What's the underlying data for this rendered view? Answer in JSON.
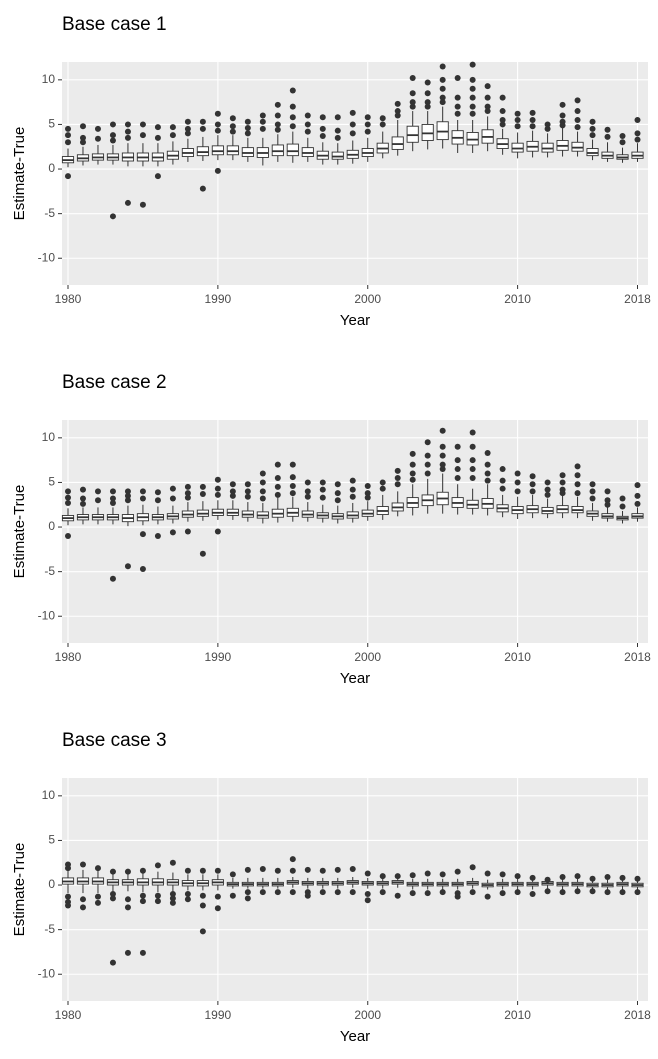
{
  "chart_data": [
    {
      "type": "box",
      "title": "Base case 1",
      "xlabel": "Year",
      "ylabel": "Estimate-True",
      "x": [
        1980,
        1981,
        1982,
        1983,
        1984,
        1985,
        1986,
        1987,
        1988,
        1989,
        1990,
        1991,
        1992,
        1993,
        1994,
        1995,
        1996,
        1997,
        1998,
        1999,
        2000,
        2001,
        2002,
        2003,
        2004,
        2005,
        2006,
        2007,
        2008,
        2009,
        2010,
        2011,
        2012,
        2013,
        2014,
        2015,
        2016,
        2017,
        2018
      ],
      "lower": [
        0.2,
        0.4,
        0.5,
        0.5,
        0.3,
        0.3,
        0.3,
        0.5,
        0.8,
        0.9,
        1.0,
        1.0,
        0.8,
        0.4,
        0.8,
        0.7,
        0.8,
        0.5,
        0.5,
        0.6,
        0.8,
        1.2,
        1.5,
        2.0,
        2.2,
        2.3,
        1.8,
        1.8,
        2.0,
        1.6,
        1.2,
        1.3,
        1.3,
        1.4,
        1.4,
        1.0,
        0.8,
        0.7,
        0.8
      ],
      "q1": [
        0.7,
        0.9,
        1.0,
        1.0,
        0.9,
        0.9,
        0.9,
        1.1,
        1.4,
        1.5,
        1.6,
        1.6,
        1.4,
        1.3,
        1.5,
        1.5,
        1.4,
        1.1,
        1.1,
        1.2,
        1.4,
        1.8,
        2.2,
        3.0,
        3.2,
        3.3,
        2.8,
        2.7,
        2.9,
        2.3,
        1.9,
        2.0,
        1.9,
        2.1,
        2.0,
        1.5,
        1.2,
        1.1,
        1.2
      ],
      "median": [
        1.0,
        1.2,
        1.3,
        1.3,
        1.3,
        1.3,
        1.3,
        1.5,
        1.8,
        1.9,
        2.0,
        2.0,
        1.8,
        1.8,
        2.0,
        2.0,
        1.8,
        1.5,
        1.4,
        1.6,
        1.8,
        2.3,
        2.8,
        3.8,
        4.0,
        4.2,
        3.5,
        3.3,
        3.6,
        2.8,
        2.3,
        2.5,
        2.3,
        2.6,
        2.4,
        1.8,
        1.5,
        1.3,
        1.5
      ],
      "q3": [
        1.4,
        1.6,
        1.7,
        1.7,
        1.8,
        1.8,
        1.8,
        2.0,
        2.3,
        2.5,
        2.6,
        2.6,
        2.4,
        2.4,
        2.7,
        2.8,
        2.4,
        2.0,
        1.9,
        2.1,
        2.3,
        2.9,
        3.6,
        4.8,
        5.0,
        5.3,
        4.3,
        4.1,
        4.4,
        3.4,
        2.9,
        3.1,
        2.9,
        3.2,
        3.0,
        2.3,
        1.9,
        1.6,
        1.9
      ],
      "upper": [
        2.3,
        2.5,
        2.7,
        2.7,
        2.9,
        2.9,
        2.9,
        3.1,
        3.4,
        3.6,
        3.8,
        3.8,
        3.5,
        3.5,
        3.9,
        4.2,
        3.5,
        3.0,
        2.9,
        3.2,
        3.5,
        4.2,
        5.5,
        6.5,
        6.5,
        7.0,
        5.5,
        5.5,
        5.9,
        4.5,
        4.1,
        4.3,
        4.0,
        4.6,
        4.2,
        3.3,
        3.0,
        2.4,
        2.9
      ],
      "outliers": [
        [
          4.5,
          3.8,
          3.0,
          -0.8
        ],
        [
          4.8,
          3.5,
          3.0
        ],
        [
          4.5,
          3.4
        ],
        [
          5.0,
          3.8,
          3.2,
          -5.3
        ],
        [
          5.0,
          4.2,
          3.5,
          -3.8
        ],
        [
          5.0,
          3.8,
          -4.0
        ],
        [
          4.7,
          3.5,
          -0.8
        ],
        [
          4.7,
          3.8
        ],
        [
          5.3,
          4.5,
          4.0
        ],
        [
          5.3,
          4.5,
          -2.2
        ],
        [
          6.2,
          5.0,
          4.3,
          -0.2
        ],
        [
          5.7,
          4.8,
          4.2
        ],
        [
          5.3,
          4.6,
          4.0
        ],
        [
          6.0,
          5.3,
          4.5
        ],
        [
          7.2,
          6.0,
          5.0,
          4.4
        ],
        [
          8.8,
          7.0,
          5.8,
          4.8
        ],
        [
          6.0,
          5.0,
          4.2
        ],
        [
          5.8,
          4.5,
          3.7
        ],
        [
          5.8,
          4.3,
          3.5
        ],
        [
          6.3,
          5.0,
          4.0
        ],
        [
          5.8,
          5.0,
          4.2
        ],
        [
          5.7,
          5.0
        ],
        [
          7.3,
          6.5,
          6.0
        ],
        [
          10.2,
          8.5,
          7.5,
          7.0
        ],
        [
          9.7,
          8.5,
          7.5,
          7.0
        ],
        [
          11.5,
          10.0,
          9.0,
          8.0,
          7.5
        ],
        [
          10.2,
          8.0,
          7.0,
          6.2
        ],
        [
          11.7,
          10.0,
          9.0,
          8.0,
          7.0,
          6.2
        ],
        [
          9.3,
          8.0,
          7.0,
          6.5
        ],
        [
          8.0,
          6.5,
          5.5,
          5.0
        ],
        [
          6.2,
          5.5,
          4.8
        ],
        [
          6.3,
          5.5,
          4.8
        ],
        [
          5.0,
          4.5
        ],
        [
          7.2,
          6.0,
          5.3,
          4.9
        ],
        [
          7.7,
          6.5,
          5.5,
          4.7
        ],
        [
          5.3,
          4.5,
          3.8
        ],
        [
          4.4,
          3.6
        ],
        [
          3.7,
          3.0
        ],
        [
          5.5,
          4.0,
          3.3
        ]
      ],
      "xlim": [
        1979.6,
        2018.7
      ],
      "ylim": [
        -13,
        12
      ],
      "xticks": [
        1980,
        1990,
        2000,
        2010,
        2018
      ],
      "yticks": [
        -10,
        -5,
        0,
        5,
        10
      ],
      "grid": true,
      "panel_color": "#ebebeb",
      "box_color": "#ffffff",
      "line_color": "#333333"
    },
    {
      "type": "box",
      "title": "Base case 2",
      "xlabel": "Year",
      "ylabel": "Estimate-True",
      "x": [
        1980,
        1981,
        1982,
        1983,
        1984,
        1985,
        1986,
        1987,
        1988,
        1989,
        1990,
        1991,
        1992,
        1993,
        1994,
        1995,
        1996,
        1997,
        1998,
        1999,
        2000,
        2001,
        2002,
        2003,
        2004,
        2005,
        2006,
        2007,
        2008,
        2009,
        2010,
        2011,
        2012,
        2013,
        2014,
        2015,
        2016,
        2017,
        2018
      ],
      "lower": [
        0.2,
        0.3,
        0.3,
        0.3,
        0.1,
        0.2,
        0.3,
        0.4,
        0.6,
        0.7,
        0.8,
        0.8,
        0.6,
        0.4,
        0.5,
        0.6,
        0.6,
        0.5,
        0.4,
        0.5,
        0.7,
        0.8,
        1.2,
        1.3,
        1.5,
        1.5,
        1.4,
        1.4,
        1.3,
        1.1,
        0.9,
        1.0,
        1.0,
        1.0,
        1.0,
        0.7,
        0.6,
        0.4,
        0.6
      ],
      "q1": [
        0.7,
        0.8,
        0.8,
        0.8,
        0.6,
        0.7,
        0.8,
        0.9,
        1.1,
        1.2,
        1.3,
        1.3,
        1.1,
        1.0,
        1.1,
        1.2,
        1.1,
        1.0,
        0.9,
        1.0,
        1.2,
        1.4,
        1.8,
        2.2,
        2.4,
        2.5,
        2.2,
        2.1,
        2.1,
        1.7,
        1.5,
        1.6,
        1.5,
        1.6,
        1.6,
        1.2,
        1.0,
        0.8,
        1.0
      ],
      "median": [
        1.0,
        1.1,
        1.1,
        1.1,
        1.0,
        1.1,
        1.1,
        1.2,
        1.4,
        1.5,
        1.6,
        1.6,
        1.4,
        1.3,
        1.5,
        1.6,
        1.4,
        1.3,
        1.2,
        1.3,
        1.5,
        1.8,
        2.2,
        2.7,
        3.0,
        3.2,
        2.7,
        2.5,
        2.6,
        2.1,
        1.9,
        2.0,
        1.8,
        2.0,
        1.9,
        1.5,
        1.2,
        1.0,
        1.2
      ],
      "q3": [
        1.3,
        1.4,
        1.4,
        1.4,
        1.4,
        1.5,
        1.4,
        1.5,
        1.8,
        1.9,
        2.0,
        2.0,
        1.8,
        1.7,
        2.0,
        2.1,
        1.8,
        1.6,
        1.5,
        1.7,
        1.9,
        2.3,
        2.7,
        3.3,
        3.6,
        3.9,
        3.3,
        3.0,
        3.2,
        2.5,
        2.3,
        2.4,
        2.2,
        2.4,
        2.3,
        1.8,
        1.5,
        1.2,
        1.5
      ],
      "upper": [
        2.1,
        2.2,
        2.2,
        2.2,
        2.4,
        2.5,
        2.3,
        2.4,
        2.8,
        2.9,
        3.0,
        3.0,
        2.8,
        2.7,
        3.3,
        3.4,
        2.8,
        2.5,
        2.4,
        2.7,
        2.9,
        3.6,
        4.0,
        4.8,
        5.4,
        6.0,
        4.8,
        4.3,
        4.8,
        3.6,
        3.4,
        3.6,
        3.2,
        3.6,
        3.4,
        2.7,
        2.2,
        1.8,
        2.2
      ],
      "outliers": [
        [
          4.0,
          3.3,
          2.7,
          -1.0
        ],
        [
          4.2,
          3.2,
          2.6
        ],
        [
          4.0,
          3.0
        ],
        [
          4.0,
          3.2,
          2.7,
          -5.8
        ],
        [
          4.0,
          3.5,
          3.0,
          -4.4
        ],
        [
          4.0,
          3.2,
          -0.8,
          -4.7
        ],
        [
          3.9,
          3.0,
          -1.0
        ],
        [
          4.3,
          3.2,
          -0.6
        ],
        [
          4.5,
          3.8,
          3.3,
          -0.5
        ],
        [
          4.5,
          3.7,
          -3.0
        ],
        [
          5.3,
          4.3,
          3.6,
          -0.5
        ],
        [
          4.8,
          4.0,
          3.5
        ],
        [
          4.8,
          4.0,
          3.4
        ],
        [
          6.0,
          5.0,
          4.0,
          3.2
        ],
        [
          7.0,
          5.5,
          4.5,
          3.6
        ],
        [
          7.0,
          5.6,
          4.6,
          3.8
        ],
        [
          5.0,
          4.0,
          3.4
        ],
        [
          5.0,
          4.2,
          3.3
        ],
        [
          4.8,
          3.8,
          3.0
        ],
        [
          5.2,
          4.2,
          3.4
        ],
        [
          4.6,
          3.8,
          3.3
        ],
        [
          5.0,
          4.3
        ],
        [
          6.3,
          5.5,
          4.8
        ],
        [
          8.2,
          7.0,
          6.0,
          5.3
        ],
        [
          9.5,
          8.0,
          7.0,
          6.0
        ],
        [
          10.8,
          9.0,
          8.0,
          7.0,
          6.5
        ],
        [
          9.0,
          7.5,
          6.5,
          5.5
        ],
        [
          10.6,
          9.0,
          7.5,
          6.5,
          5.5
        ],
        [
          8.3,
          7.0,
          6.0,
          5.2
        ],
        [
          6.5,
          5.2,
          4.3
        ],
        [
          6.0,
          5.0,
          4.0
        ],
        [
          5.7,
          4.8,
          4.0
        ],
        [
          5.0,
          4.2,
          3.6
        ],
        [
          5.8,
          5.0,
          4.2,
          3.8
        ],
        [
          6.8,
          5.8,
          4.8,
          3.8
        ],
        [
          4.8,
          4.0,
          3.2
        ],
        [
          4.0,
          3.0,
          2.5
        ],
        [
          3.2,
          2.3
        ],
        [
          4.7,
          3.5,
          2.6
        ]
      ],
      "xlim": [
        1979.6,
        2018.7
      ],
      "ylim": [
        -13,
        12
      ],
      "xticks": [
        1980,
        1990,
        2000,
        2010,
        2018
      ],
      "yticks": [
        -10,
        -5,
        0,
        5,
        10
      ],
      "grid": true,
      "panel_color": "#ebebeb",
      "box_color": "#ffffff",
      "line_color": "#333333"
    },
    {
      "type": "box",
      "title": "Base case 3",
      "xlabel": "Year",
      "ylabel": "Estimate-True",
      "x": [
        1980,
        1981,
        1982,
        1983,
        1984,
        1985,
        1986,
        1987,
        1988,
        1989,
        1990,
        1991,
        1992,
        1993,
        1994,
        1995,
        1996,
        1997,
        1998,
        1999,
        2000,
        2001,
        2002,
        2003,
        2004,
        2005,
        2006,
        2007,
        2008,
        2009,
        2010,
        2011,
        2012,
        2013,
        2014,
        2015,
        2016,
        2017,
        2018
      ],
      "lower": [
        -0.9,
        -0.9,
        -0.9,
        -0.7,
        -0.7,
        -0.8,
        -0.8,
        -0.7,
        -0.6,
        -0.6,
        -0.6,
        -0.4,
        -0.4,
        -0.4,
        -0.4,
        -0.3,
        -0.4,
        -0.4,
        -0.4,
        -0.3,
        -0.4,
        -0.4,
        -0.3,
        -0.5,
        -0.5,
        -0.5,
        -0.5,
        -0.4,
        -0.5,
        -0.5,
        -0.5,
        -0.5,
        -0.4,
        -0.5,
        -0.5,
        -0.5,
        -0.5,
        -0.5,
        -0.5
      ],
      "q1": [
        0.1,
        0.1,
        0.1,
        0.0,
        0.0,
        0.0,
        0.0,
        0.0,
        -0.1,
        -0.1,
        0.0,
        -0.1,
        -0.1,
        -0.1,
        -0.1,
        0.1,
        0.0,
        0.0,
        0.0,
        0.1,
        0.0,
        0.0,
        0.1,
        -0.1,
        -0.1,
        -0.1,
        -0.1,
        0.0,
        -0.2,
        -0.1,
        -0.1,
        -0.1,
        0.0,
        -0.1,
        -0.1,
        -0.2,
        -0.2,
        -0.1,
        -0.2
      ],
      "median": [
        0.4,
        0.4,
        0.4,
        0.3,
        0.3,
        0.3,
        0.3,
        0.3,
        0.2,
        0.2,
        0.3,
        0.1,
        0.1,
        0.1,
        0.1,
        0.3,
        0.2,
        0.2,
        0.2,
        0.3,
        0.2,
        0.2,
        0.3,
        0.1,
        0.1,
        0.1,
        0.1,
        0.2,
        0.0,
        0.1,
        0.1,
        0.1,
        0.2,
        0.1,
        0.1,
        0.0,
        0.0,
        0.1,
        0.0
      ],
      "q3": [
        0.8,
        0.8,
        0.8,
        0.6,
        0.6,
        0.7,
        0.7,
        0.6,
        0.5,
        0.5,
        0.6,
        0.3,
        0.3,
        0.3,
        0.3,
        0.5,
        0.4,
        0.4,
        0.4,
        0.5,
        0.4,
        0.4,
        0.5,
        0.3,
        0.3,
        0.3,
        0.3,
        0.4,
        0.2,
        0.3,
        0.3,
        0.3,
        0.4,
        0.3,
        0.3,
        0.2,
        0.2,
        0.3,
        0.2
      ],
      "upper": [
        1.7,
        1.7,
        1.7,
        1.4,
        1.4,
        1.5,
        1.5,
        1.4,
        1.2,
        1.2,
        1.2,
        0.8,
        0.8,
        0.8,
        0.8,
        0.9,
        0.8,
        0.8,
        0.8,
        0.9,
        0.8,
        0.8,
        0.9,
        0.7,
        0.7,
        0.7,
        0.7,
        0.8,
        0.6,
        0.7,
        0.7,
        0.7,
        0.8,
        0.7,
        0.7,
        0.6,
        0.6,
        0.7,
        0.6
      ],
      "outliers": [
        [
          2.3,
          1.9,
          -1.3,
          -1.9,
          -2.3
        ],
        [
          2.3,
          -1.6,
          -2.5
        ],
        [
          1.9,
          -1.3,
          -2.0
        ],
        [
          1.5,
          -1.0,
          -1.5,
          -8.7
        ],
        [
          1.5,
          -1.6,
          -2.5,
          -7.6
        ],
        [
          1.6,
          -1.2,
          -1.8,
          -7.6
        ],
        [
          2.2,
          -1.2,
          -1.8
        ],
        [
          2.5,
          -1.0,
          -1.5,
          -2.0
        ],
        [
          1.6,
          -1.0,
          -1.6
        ],
        [
          1.6,
          -1.2,
          -2.3,
          -5.2
        ],
        [
          1.6,
          -1.3,
          -2.6
        ],
        [
          1.2,
          -1.2
        ],
        [
          1.7,
          -0.8,
          -1.5
        ],
        [
          1.8,
          -0.8
        ],
        [
          1.6,
          -0.8
        ],
        [
          2.9,
          1.6,
          -0.8
        ],
        [
          1.7,
          -0.8,
          -1.2
        ],
        [
          1.6,
          -0.8
        ],
        [
          1.7,
          -0.8
        ],
        [
          1.8,
          -0.8
        ],
        [
          1.3,
          -1.0,
          -1.7
        ],
        [
          1.0,
          -0.8
        ],
        [
          1.0,
          -1.2
        ],
        [
          1.1,
          -0.9
        ],
        [
          1.3,
          -0.9
        ],
        [
          1.2,
          -0.8
        ],
        [
          1.5,
          -0.9,
          -1.3
        ],
        [
          2.0,
          -0.8
        ],
        [
          1.3,
          -1.3
        ],
        [
          1.2,
          -0.9
        ],
        [
          1.0,
          -0.8
        ],
        [
          0.8,
          -1.0
        ],
        [
          0.6,
          -0.7
        ],
        [
          0.9,
          -0.8
        ],
        [
          1.0,
          -0.7
        ],
        [
          0.7,
          -0.7
        ],
        [
          0.9,
          -0.8
        ],
        [
          0.8,
          -0.8
        ],
        [
          0.7,
          -0.8
        ]
      ],
      "xlim": [
        1979.6,
        2018.7
      ],
      "ylim": [
        -13,
        12
      ],
      "xticks": [
        1980,
        1990,
        2000,
        2010,
        2018
      ],
      "yticks": [
        -10,
        -5,
        0,
        5,
        10
      ],
      "grid": true,
      "panel_color": "#ebebeb",
      "box_color": "#ffffff",
      "line_color": "#333333"
    }
  ]
}
